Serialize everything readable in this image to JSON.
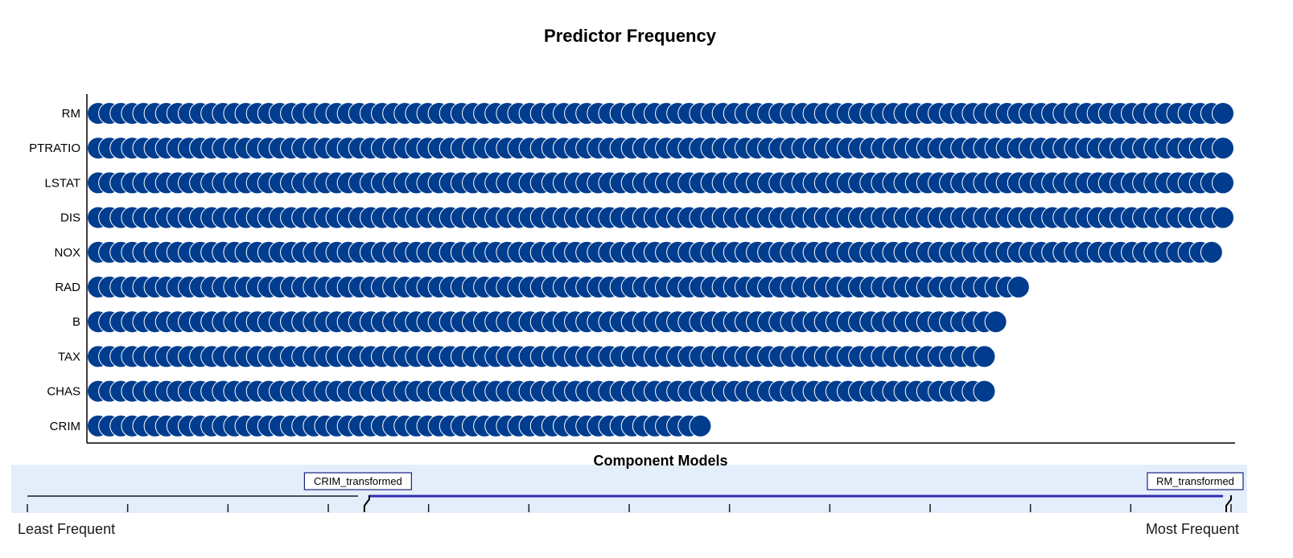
{
  "chart_data": {
    "type": "scatter",
    "title": "Predictor Frequency",
    "xlabel": "Component Models",
    "ylabel": "",
    "categories": [
      "RM",
      "PTRATIO",
      "LSTAT",
      "DIS",
      "NOX",
      "RAD",
      "B",
      "TAX",
      "CHAS",
      "CRIM"
    ],
    "values": [
      100,
      100,
      100,
      100,
      99,
      82,
      80,
      79,
      79,
      54
    ],
    "xlim": [
      0,
      100
    ],
    "grid": false,
    "legend": "none",
    "colors": {
      "marker_fill": "#003d8f",
      "marker_stroke": "#ffffff",
      "axis": "#000000",
      "slider_band": "#e4eefb",
      "slider_active": "#2f2fb0",
      "slider_inactive": "#1a1a1a"
    }
  },
  "slider": {
    "left_label": "CRIM_transformed",
    "right_label": "RM_transformed",
    "range_start": 0.28,
    "range_end": 1.0,
    "least_label": "Least Frequent",
    "most_label": "Most Frequent"
  }
}
